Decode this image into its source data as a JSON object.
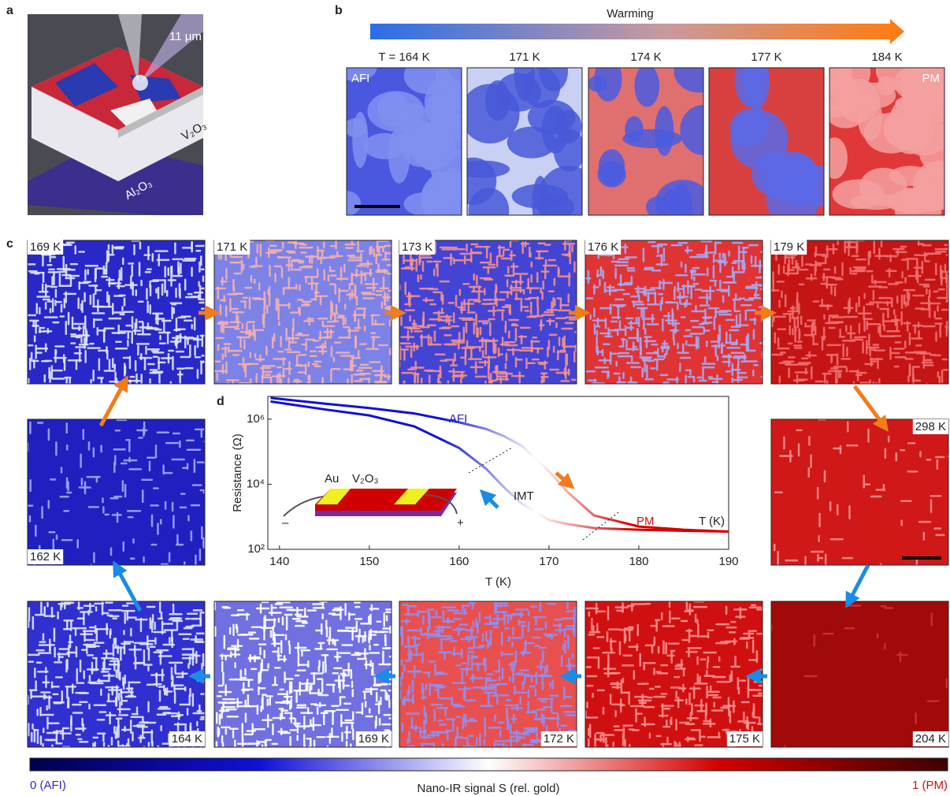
{
  "panel_a": {
    "letter": "a",
    "scale": "11 μm",
    "film": "V₂O₃",
    "substrate": "Al₂O₃"
  },
  "panel_b": {
    "letter": "b",
    "arrow_label": "Warming",
    "images": [
      {
        "label": "T = 164 K",
        "tag": "AFI"
      },
      {
        "label": "171 K"
      },
      {
        "label": "174 K"
      },
      {
        "label": "177 K"
      },
      {
        "label": "184 K",
        "tag": "PM"
      }
    ]
  },
  "panel_c": {
    "letter": "c",
    "images": [
      {
        "label": "169 K"
      },
      {
        "label": "171 K"
      },
      {
        "label": "173 K"
      },
      {
        "label": "176 K"
      },
      {
        "label": "179 K"
      },
      {
        "label": "298 K"
      },
      {
        "label": "204 K"
      },
      {
        "label": "175 K"
      },
      {
        "label": "172 K"
      },
      {
        "label": "169 K"
      },
      {
        "label": "164 K"
      },
      {
        "label": "162 K"
      }
    ]
  },
  "panel_d": {
    "letter": "d",
    "annotations": [
      "AFI",
      "IMT",
      "PM"
    ],
    "axis_note": "T (K)",
    "inset": {
      "electrode": "Au",
      "film": "V₂O₃",
      "minus": "–",
      "plus": "+"
    }
  },
  "chart_data": {
    "type": "line",
    "x_label": "T (K)",
    "y_label": "Resistance (Ω)",
    "log_y": true,
    "x": [
      139,
      145,
      150,
      155,
      160,
      163,
      165,
      167,
      170,
      172,
      175,
      180,
      185,
      190
    ],
    "series": [
      {
        "color": "#1a1ab4",
        "values": [
          4500000,
          3000000,
          2200000,
          1500000,
          800000,
          500000,
          300000,
          150000,
          25000,
          6000,
          1100,
          500,
          400,
          350
        ]
      },
      {
        "color": "#1a1ab4",
        "values": [
          3500000,
          2000000,
          1300000,
          600000,
          130000,
          30000,
          8000,
          2500,
          800,
          600,
          450,
          400,
          370,
          350
        ]
      }
    ],
    "xlim": [
      138.7,
      190
    ],
    "xticks": [
      140,
      150,
      160,
      170,
      180,
      190
    ],
    "ylim": [
      100,
      5000000
    ],
    "yticks": [
      {
        "value": 100,
        "label": "10²"
      },
      {
        "value": 10000,
        "label": "10⁴"
      },
      {
        "value": 1000000,
        "label": "10⁶"
      }
    ]
  },
  "colorbar": {
    "min_label": "0 (AFI)",
    "title": "Nano-IR signal S (rel. gold)",
    "max_label": "1 (PM)",
    "colors": [
      "#00004a",
      "#1010d8",
      "#ffffff",
      "#d40000",
      "#3c0000"
    ]
  }
}
